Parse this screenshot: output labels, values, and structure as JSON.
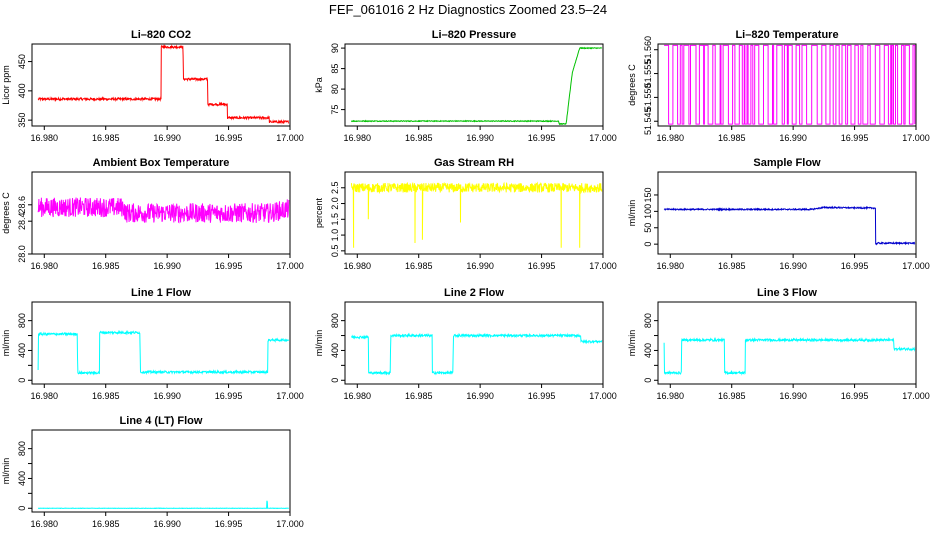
{
  "title": "FEF_061016  2 Hz Diagnostics Zoomed 23.5–24",
  "chart_data": [
    {
      "type": "line",
      "title": "Li–820 CO2",
      "ylabel": "Licor ppm",
      "color": "#ff0000",
      "xlim": [
        16.979,
        17.0
      ],
      "ylim": [
        340,
        480
      ],
      "yticks": [
        {
          "v": 350,
          "label": "350"
        },
        {
          "v": 400,
          "label": "400"
        },
        {
          "v": 450,
          "label": "450"
        }
      ],
      "xticks": [
        {
          "v": 16.98,
          "label": "16.980"
        },
        {
          "v": 16.985,
          "label": "16.985"
        },
        {
          "v": 16.99,
          "label": "16.990"
        },
        {
          "v": 16.995,
          "label": "16.995"
        },
        {
          "v": 17.0,
          "label": "17.000"
        }
      ],
      "series": [
        {
          "x": [
            16.9795,
            16.9895,
            16.98951,
            16.9913,
            16.99131,
            16.9933,
            16.99331,
            16.9949,
            16.99491,
            16.9983,
            16.99831,
            16.9999
          ],
          "y": [
            386,
            386,
            475,
            475,
            420,
            420,
            377,
            377,
            354,
            354,
            347,
            347
          ]
        }
      ],
      "noise": 2
    },
    {
      "type": "line",
      "title": "Li–820 Pressure",
      "ylabel": "kPa",
      "color": "#00c000",
      "xlim": [
        16.979,
        17.0
      ],
      "ylim": [
        71,
        91
      ],
      "yticks": [
        {
          "v": 75,
          "label": "75"
        },
        {
          "v": 80,
          "label": "80"
        },
        {
          "v": 85,
          "label": "85"
        },
        {
          "v": 90,
          "label": "90"
        }
      ],
      "xticks": [
        {
          "v": 16.98,
          "label": "16.980"
        },
        {
          "v": 16.985,
          "label": "16.985"
        },
        {
          "v": 16.99,
          "label": "16.990"
        },
        {
          "v": 16.995,
          "label": "16.995"
        },
        {
          "v": 17.0,
          "label": "17.000"
        }
      ],
      "series": [
        {
          "x": [
            16.9795,
            16.9964,
            16.99641,
            16.997,
            16.9975,
            16.9981,
            16.9999
          ],
          "y": [
            72.2,
            72.2,
            71.5,
            71.5,
            84,
            90,
            90
          ]
        }
      ],
      "noise": 0.1
    },
    {
      "type": "line",
      "title": "Li–820 Temperature",
      "ylabel": "degrees C",
      "color": "#ff00ff",
      "xlim": [
        16.979,
        17.0
      ],
      "ylim": [
        51.544,
        51.5612
      ],
      "yticks": [
        {
          "v": 51.545,
          "label": "51.545"
        },
        {
          "v": 51.55,
          "label": "51.550"
        },
        {
          "v": 51.555,
          "label": "51.555"
        },
        {
          "v": 51.56,
          "label": "51.560"
        }
      ],
      "xticks": [
        {
          "v": 16.98,
          "label": "16.980"
        },
        {
          "v": 16.985,
          "label": "16.985"
        },
        {
          "v": 16.99,
          "label": "16.990"
        },
        {
          "v": 16.995,
          "label": "16.995"
        },
        {
          "v": 17.0,
          "label": "17.000"
        }
      ],
      "series": [
        {
          "x": [
            16.9795,
            16.9999
          ],
          "y": [
            51.5444,
            51.5609
          ]
        }
      ],
      "pattern": "binary"
    },
    {
      "type": "line",
      "title": "Ambient Box Temperature",
      "ylabel": "degrees C",
      "color": "#ff00ff",
      "xlim": [
        16.979,
        17.0
      ],
      "ylim": [
        28.0,
        29.0
      ],
      "yticks": [
        {
          "v": 28.0,
          "label": "28.0"
        },
        {
          "v": 28.4,
          "label": "28.4"
        },
        {
          "v": 28.6,
          "label": "28.6"
        }
      ],
      "xticks": [
        {
          "v": 16.98,
          "label": "16.980"
        },
        {
          "v": 16.985,
          "label": "16.985"
        },
        {
          "v": 16.99,
          "label": "16.990"
        },
        {
          "v": 16.995,
          "label": "16.995"
        },
        {
          "v": 17.0,
          "label": "17.000"
        }
      ],
      "series": [
        {
          "x": [
            16.9795,
            16.9865,
            16.9866,
            16.9983,
            16.9999
          ],
          "y": [
            28.57,
            28.57,
            28.5,
            28.5,
            28.55
          ]
        }
      ],
      "noise": 0.12
    },
    {
      "type": "line",
      "title": "Gas Stream RH",
      "ylabel": "percent",
      "color": "#ffff00",
      "xlim": [
        16.979,
        17.0
      ],
      "ylim": [
        0.4,
        3.0
      ],
      "yticks": [
        {
          "v": 0.5,
          "label": "0.5"
        },
        {
          "v": 1.0,
          "label": "1.0"
        },
        {
          "v": 1.5,
          "label": "1.5"
        },
        {
          "v": 2.0,
          "label": "2.0"
        },
        {
          "v": 2.5,
          "label": "2.5"
        }
      ],
      "xticks": [
        {
          "v": 16.98,
          "label": "16.980"
        },
        {
          "v": 16.985,
          "label": "16.985"
        },
        {
          "v": 16.99,
          "label": "16.990"
        },
        {
          "v": 16.995,
          "label": "16.995"
        },
        {
          "v": 17.0,
          "label": "17.000"
        }
      ],
      "series": [
        {
          "x": [
            16.9795,
            16.9999
          ],
          "y": [
            2.5,
            2.5
          ]
        }
      ],
      "noise": 0.15,
      "spikes": [
        [
          16.9797,
          0.6
        ],
        [
          16.9809,
          1.5
        ],
        [
          16.9847,
          0.75
        ],
        [
          16.9853,
          0.85
        ],
        [
          16.9884,
          1.4
        ],
        [
          16.9966,
          0.6
        ],
        [
          16.9981,
          0.6
        ]
      ]
    },
    {
      "type": "line",
      "title": "Sample Flow",
      "ylabel": "ml/min",
      "color": "#0000cc",
      "xlim": [
        16.979,
        17.0
      ],
      "ylim": [
        -30,
        220
      ],
      "yticks": [
        {
          "v": 0,
          "label": "0"
        },
        {
          "v": 50,
          "label": "50"
        },
        {
          "v": 100,
          "label": "100"
        },
        {
          "v": 150,
          "label": "150"
        }
      ],
      "xticks": [
        {
          "v": 16.98,
          "label": "16.980"
        },
        {
          "v": 16.985,
          "label": "16.985"
        },
        {
          "v": 16.99,
          "label": "16.990"
        },
        {
          "v": 16.995,
          "label": "16.995"
        },
        {
          "v": 17.0,
          "label": "17.000"
        }
      ],
      "series": [
        {
          "x": [
            16.9795,
            16.9915,
            16.9925,
            16.9967,
            16.99671,
            16.9969,
            16.9999
          ],
          "y": [
            106,
            106,
            112,
            110,
            0,
            3,
            3
          ]
        }
      ],
      "noise": 2
    },
    {
      "type": "line",
      "title": "Line 1 Flow",
      "ylabel": "ml/min",
      "color": "#00ffff",
      "xlim": [
        16.979,
        17.0
      ],
      "ylim": [
        -50,
        1050
      ],
      "yticks": [
        {
          "v": 0,
          "label": "0"
        },
        {
          "v": 200,
          "label": ""
        },
        {
          "v": 400,
          "label": "400"
        },
        {
          "v": 600,
          "label": ""
        },
        {
          "v": 800,
          "label": "800"
        }
      ],
      "xticks": [
        {
          "v": 16.98,
          "label": "16.980"
        },
        {
          "v": 16.985,
          "label": "16.985"
        },
        {
          "v": 16.99,
          "label": "16.990"
        },
        {
          "v": 16.995,
          "label": "16.995"
        },
        {
          "v": 17.0,
          "label": "17.000"
        }
      ],
      "series": [
        {
          "x": [
            16.9795,
            16.97951,
            16.9827,
            16.98271,
            16.9845,
            16.98451,
            16.9878,
            16.98781,
            16.9982,
            16.99821,
            16.9999
          ],
          "y": [
            150,
            620,
            620,
            100,
            100,
            640,
            640,
            110,
            110,
            540,
            540
          ]
        }
      ],
      "noise": 15
    },
    {
      "type": "line",
      "title": "Line 2 Flow",
      "ylabel": "ml/min",
      "color": "#00ffff",
      "xlim": [
        16.979,
        17.0
      ],
      "ylim": [
        -50,
        1050
      ],
      "yticks": [
        {
          "v": 0,
          "label": "0"
        },
        {
          "v": 200,
          "label": ""
        },
        {
          "v": 400,
          "label": "400"
        },
        {
          "v": 600,
          "label": ""
        },
        {
          "v": 800,
          "label": "800"
        }
      ],
      "xticks": [
        {
          "v": 16.98,
          "label": "16.980"
        },
        {
          "v": 16.985,
          "label": "16.985"
        },
        {
          "v": 16.99,
          "label": "16.990"
        },
        {
          "v": 16.995,
          "label": "16.995"
        },
        {
          "v": 17.0,
          "label": "17.000"
        }
      ],
      "series": [
        {
          "x": [
            16.9795,
            16.9809,
            16.98091,
            16.9827,
            16.98271,
            16.9861,
            16.98611,
            16.9878,
            16.98781,
            16.9982,
            16.99821,
            16.9999
          ],
          "y": [
            580,
            580,
            100,
            100,
            600,
            600,
            100,
            100,
            600,
            600,
            520,
            520
          ]
        }
      ],
      "noise": 15
    },
    {
      "type": "line",
      "title": "Line 3 Flow",
      "ylabel": "ml/min",
      "color": "#00ffff",
      "xlim": [
        16.979,
        17.0
      ],
      "ylim": [
        -50,
        1050
      ],
      "yticks": [
        {
          "v": 0,
          "label": "0"
        },
        {
          "v": 200,
          "label": ""
        },
        {
          "v": 400,
          "label": "400"
        },
        {
          "v": 600,
          "label": ""
        },
        {
          "v": 800,
          "label": "800"
        }
      ],
      "xticks": [
        {
          "v": 16.98,
          "label": "16.980"
        },
        {
          "v": 16.985,
          "label": "16.985"
        },
        {
          "v": 16.99,
          "label": "16.990"
        },
        {
          "v": 16.995,
          "label": "16.995"
        },
        {
          "v": 17.0,
          "label": "17.000"
        }
      ],
      "series": [
        {
          "x": [
            16.9795,
            16.97951,
            16.9809,
            16.98091,
            16.9844,
            16.98441,
            16.9861,
            16.98611,
            16.9982,
            16.99821,
            16.9999
          ],
          "y": [
            500,
            100,
            100,
            540,
            540,
            100,
            100,
            540,
            540,
            420,
            420
          ]
        }
      ],
      "noise": 15
    },
    {
      "type": "line",
      "title": "Line 4 (LT) Flow",
      "ylabel": "ml/min",
      "color": "#00ffff",
      "xlim": [
        16.979,
        17.0
      ],
      "ylim": [
        -50,
        1050
      ],
      "yticks": [
        {
          "v": 0,
          "label": "0"
        },
        {
          "v": 200,
          "label": ""
        },
        {
          "v": 400,
          "label": "400"
        },
        {
          "v": 600,
          "label": ""
        },
        {
          "v": 800,
          "label": "800"
        }
      ],
      "xticks": [
        {
          "v": 16.98,
          "label": "16.980"
        },
        {
          "v": 16.985,
          "label": "16.985"
        },
        {
          "v": 16.99,
          "label": "16.990"
        },
        {
          "v": 16.995,
          "label": "16.995"
        },
        {
          "v": 17.0,
          "label": "17.000"
        }
      ],
      "series": [
        {
          "x": [
            16.9795,
            16.9981,
            16.99811,
            16.99815,
            16.99816,
            16.9999
          ],
          "y": [
            0,
            0,
            100,
            100,
            0,
            0
          ]
        }
      ],
      "noise": 2
    }
  ]
}
